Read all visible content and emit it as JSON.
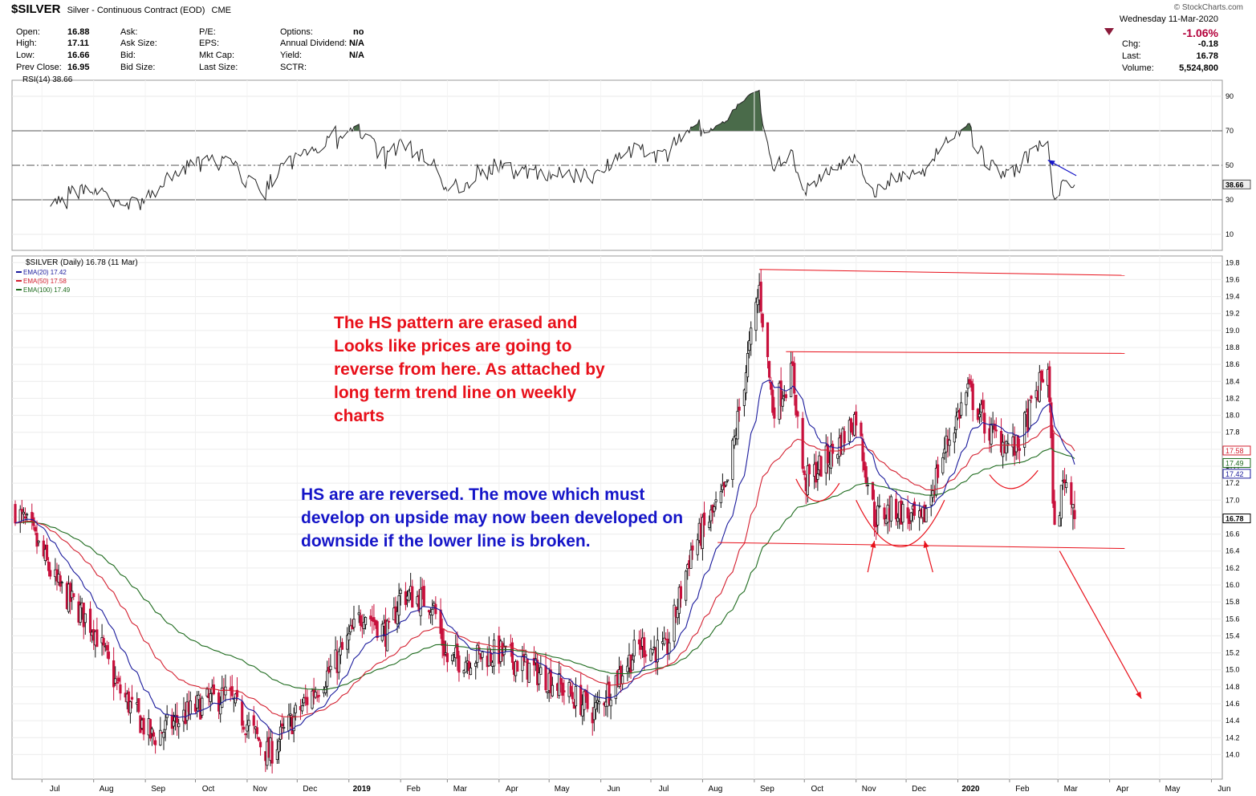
{
  "header": {
    "symbol": "$SILVER",
    "name": "Silver - Continuous Contract (EOD)",
    "exchange": "CME",
    "brand": "© StockCharts.com",
    "date": "Wednesday  11-Mar-2020",
    "stats": {
      "open_label": "Open:",
      "open": "16.88",
      "high_label": "High:",
      "high": "17.11",
      "low_label": "Low:",
      "low": "16.66",
      "prev_label": "Prev Close:",
      "prev": "16.95",
      "ask_label": "Ask:",
      "ask_size_label": "Ask Size:",
      "bid_label": "Bid:",
      "bid_size_label": "Bid Size:",
      "pe_label": "P/E:",
      "eps_label": "EPS:",
      "mktcap_label": "Mkt Cap:",
      "lastsize_label": "Last Size:",
      "options_label": "Options:",
      "options": "no",
      "div_label": "Annual Dividend:",
      "div": "N/A",
      "yield_label": "Yield:",
      "yield": "N/A",
      "sctr_label": "SCTR:"
    },
    "summary": {
      "pct": "-1.06%",
      "chg_label": "Chg:",
      "chg": "-0.18",
      "last_label": "Last:",
      "last": "16.78",
      "vol_label": "Volume:",
      "vol": "5,524,800"
    }
  },
  "rsi_panel": {
    "label": "RSI(14) 38.66",
    "last_tag": "38.66",
    "ticks": [
      "90",
      "70",
      "50",
      "30",
      "10"
    ]
  },
  "price_panel": {
    "label": "$SILVER (Daily) 16.78 (11 Mar)",
    "ema20_label": "EMA(20) 17.42",
    "ema50_label": "EMA(50) 17.58",
    "ema100_label": "EMA(100) 17.49",
    "tags": [
      "17.58",
      "17.49",
      "17.42",
      "16.78"
    ],
    "ticks": [
      "19.8",
      "19.6",
      "19.4",
      "19.2",
      "19.0",
      "18.8",
      "18.6",
      "18.4",
      "18.2",
      "18.0",
      "17.8",
      "17.6",
      "17.4",
      "17.2",
      "17.0",
      "16.8",
      "16.6",
      "16.4",
      "16.2",
      "16.0",
      "15.8",
      "15.6",
      "15.4",
      "15.2",
      "15.0",
      "14.8",
      "14.6",
      "14.4",
      "14.2",
      "14.0"
    ],
    "months": [
      "Jul",
      "Aug",
      "Sep",
      "Oct",
      "Nov",
      "Dec",
      "2019",
      "Feb",
      "Mar",
      "Apr",
      "May",
      "Jun",
      "Jul",
      "Aug",
      "Sep",
      "Oct",
      "Nov",
      "Dec",
      "2020",
      "Feb",
      "Mar",
      "Apr",
      "May",
      "Jun"
    ]
  },
  "annotations": {
    "red_text": "The HS pattern are erased and Looks like prices are going to reverse from here. As attached by long term trend line on weekly charts",
    "blue_text": "HS are are reversed. The move which must develop on upside may now been developed on downside if the lower line is broken."
  },
  "colors": {
    "up": "#111111",
    "down": "#c8103c",
    "ema20": "#1a1a9c",
    "ema50": "#d42030",
    "ema100": "#1e6b1e",
    "rsi_fill": "#4a6b4a",
    "annotation_red": "#e8101a",
    "annotation_blue": "#1515c8"
  },
  "chart_data": {
    "type": "candlestick",
    "title": "$SILVER (Daily) 16.78 (11 Mar)",
    "x_range": [
      "2018-06-15",
      "2020-03-11"
    ],
    "ylim": [
      13.9,
      19.85
    ],
    "anchors": [
      {
        "date": "2018-06-15",
        "close": 16.9
      },
      {
        "date": "2018-06-25",
        "close": 16.6
      },
      {
        "date": "2018-07-10",
        "close": 16.0
      },
      {
        "date": "2018-08-01",
        "close": 15.5
      },
      {
        "date": "2018-08-15",
        "close": 14.8
      },
      {
        "date": "2018-09-05",
        "close": 14.2
      },
      {
        "date": "2018-10-05",
        "close": 14.6
      },
      {
        "date": "2018-10-20",
        "close": 14.7
      },
      {
        "date": "2018-11-14",
        "close": 14.0
      },
      {
        "date": "2018-12-05",
        "close": 14.6
      },
      {
        "date": "2018-12-25",
        "close": 15.1
      },
      {
        "date": "2019-01-10",
        "close": 15.7
      },
      {
        "date": "2019-01-25",
        "close": 15.4
      },
      {
        "date": "2019-02-01",
        "close": 15.9
      },
      {
        "date": "2019-02-20",
        "close": 15.8
      },
      {
        "date": "2019-03-01",
        "close": 15.1
      },
      {
        "date": "2019-04-01",
        "close": 15.2
      },
      {
        "date": "2019-05-01",
        "close": 14.9
      },
      {
        "date": "2019-05-28",
        "close": 14.5
      },
      {
        "date": "2019-06-10",
        "close": 14.9
      },
      {
        "date": "2019-06-25",
        "close": 15.3
      },
      {
        "date": "2019-07-10",
        "close": 15.2
      },
      {
        "date": "2019-07-25",
        "close": 16.4
      },
      {
        "date": "2019-08-15",
        "close": 17.1
      },
      {
        "date": "2019-09-04",
        "close": 19.5
      },
      {
        "date": "2019-09-12",
        "close": 18.1
      },
      {
        "date": "2019-09-24",
        "close": 18.5
      },
      {
        "date": "2019-10-01",
        "close": 17.2
      },
      {
        "date": "2019-10-20",
        "close": 17.6
      },
      {
        "date": "2019-11-01",
        "close": 18.0
      },
      {
        "date": "2019-11-12",
        "close": 16.8
      },
      {
        "date": "2019-11-25",
        "close": 16.9
      },
      {
        "date": "2019-12-10",
        "close": 16.7
      },
      {
        "date": "2019-12-24",
        "close": 17.6
      },
      {
        "date": "2020-01-07",
        "close": 18.3
      },
      {
        "date": "2020-01-20",
        "close": 17.8
      },
      {
        "date": "2020-02-05",
        "close": 17.6
      },
      {
        "date": "2020-02-20",
        "close": 18.4
      },
      {
        "date": "2020-02-24",
        "close": 18.6
      },
      {
        "date": "2020-02-28",
        "close": 16.6
      },
      {
        "date": "2020-03-05",
        "close": 17.3
      },
      {
        "date": "2020-03-11",
        "close": 16.78
      }
    ],
    "last": {
      "open": 16.88,
      "high": 17.11,
      "low": 16.66,
      "close": 16.78,
      "prev_close": 16.95
    },
    "ema_last": {
      "ema20": 17.42,
      "ema50": 17.58,
      "ema100": 17.49
    },
    "rsi_last": 38.66,
    "rsi_levels": [
      70,
      50,
      30
    ],
    "trend_lines": [
      {
        "from": [
          "2019-09-04",
          19.72
        ],
        "to": [
          "2020-04-10",
          19.65
        ]
      },
      {
        "from": [
          "2019-09-20",
          18.75
        ],
        "to": [
          "2020-04-10",
          18.73
        ]
      },
      {
        "from": [
          "2019-08-10",
          16.5
        ],
        "to": [
          "2020-04-10",
          16.43
        ]
      }
    ]
  }
}
